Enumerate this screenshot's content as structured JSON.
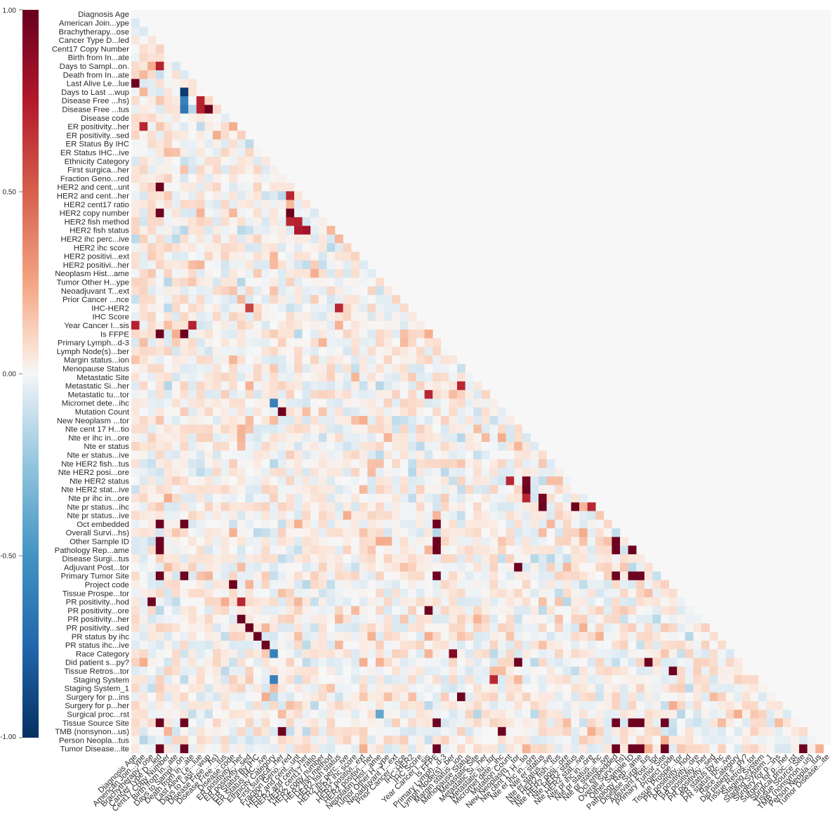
{
  "chart_data": {
    "type": "heatmap",
    "subtype": "lower-triangular correlation matrix",
    "title": "",
    "xlabel": "",
    "ylabel": "",
    "labels": [
      "Diagnosis Age",
      "American Join...ype",
      "Brachytherapy...ose",
      "Cancer Type D...led",
      "Cent17 Copy Number",
      "Birth from In...ate",
      "Days to Sampl...on.",
      "Death from In...ate",
      "Last Alive Le...lue",
      "Days to Last ...wup",
      "Disease Free ...hs)",
      "Disease Free ...tus",
      "Disease code",
      "ER positivity...her",
      "ER positivity...sed",
      "ER Status By IHC",
      "ER Status IHC...ive",
      "Ethnicity Category",
      "First surgica...her",
      "Fraction Geno...red",
      "HER2 and cent...unt",
      "HER2 and cent...her",
      "HER2 cent17 ratio",
      "HER2 copy number",
      "HER2 fish method",
      "HER2 fish status",
      "HER2 ihc perc...ive",
      "HER2 ihc score",
      "HER2 positivi...ext",
      "HER2 positivi...her",
      "Neoplasm Hist...ame",
      "Tumor Other H...ype",
      "Neoadjuvant T...ext",
      "Prior Cancer ...nce",
      "IHC-HER2",
      "IHC Score",
      "Year Cancer I...sis",
      "Is FFPE",
      "Primary Lymph...d-3",
      "Lymph Node(s)...ber",
      "Margin status...ion",
      "Menopause Status",
      "Metastatic Site",
      "Metastatic Si...her",
      "Metastatic tu...tor",
      "Micromet dete...ihc",
      "Mutation Count",
      "New Neoplasm ...tor",
      "Nte cent 17 H...tio",
      "Nte er ihc in...ore",
      "Nte er status",
      "Nte er status...ive",
      "Nte HER2 fish...tus",
      "Nte HER2 posi...ore",
      "Nte HER2 status",
      "Nte HER2 stat...ive",
      "Nte pr ihc in...ore",
      "Nte pr status...ihc",
      "Nte pr status...ive",
      "Oct embedded",
      "Overall Survi...hs)",
      "Other Sample ID",
      "Pathology Rep...ame",
      "Disease Surgi...tus",
      "Adjuvant Post...tor",
      "Primary Tumor Site",
      "Project code",
      "Tissue Prospe...tor",
      "PR positivity...hod",
      "PR positivity...ore",
      "PR positivity...her",
      "PR positivity...sed",
      "PR status by ihc",
      "PR status ihc...ive",
      "Race Category",
      "Did patient s...py?",
      "Tissue Retros...tor",
      "Staging System",
      "Staging System_1",
      "Surgery for p...ins",
      "Surgery for p...her",
      "Surgical proc...rst",
      "Tissue Source Site",
      "TMB (nonsynon...us)",
      "Person Neopla...tus",
      "Tumor Disease...ite"
    ],
    "value_range": [
      -1.0,
      1.0
    ],
    "colormap": "RdBu_r (diverging red-white-blue)",
    "mask": "upper triangle including diagonal",
    "colorbar": {
      "ticks": [
        1.0,
        0.5,
        0.0,
        -0.5,
        -1.0
      ],
      "tick_labels": [
        "1.00",
        "0.50",
        "0.00",
        "-0.50",
        "-1.00"
      ]
    },
    "strong_correlations": [
      {
        "row": 8,
        "col": 0,
        "value": 0.98
      },
      {
        "row": 36,
        "col": 0,
        "value": 0.72
      },
      {
        "row": 6,
        "col": 3,
        "value": 0.72
      },
      {
        "row": 9,
        "col": 6,
        "value": -0.95
      },
      {
        "row": 10,
        "col": 6,
        "value": -0.6
      },
      {
        "row": 11,
        "col": 6,
        "value": -0.65
      },
      {
        "row": 11,
        "col": 8,
        "value": 0.72
      },
      {
        "row": 11,
        "col": 9,
        "value": 0.98
      },
      {
        "row": 10,
        "col": 8,
        "value": 0.72
      },
      {
        "row": 13,
        "col": 1,
        "value": 0.7
      },
      {
        "row": 20,
        "col": 3,
        "value": 0.98
      },
      {
        "row": 23,
        "col": 3,
        "value": 0.98
      },
      {
        "row": 21,
        "col": 19,
        "value": 0.7
      },
      {
        "row": 23,
        "col": 19,
        "value": 0.98
      },
      {
        "row": 24,
        "col": 19,
        "value": 0.7
      },
      {
        "row": 24,
        "col": 20,
        "value": 0.72
      },
      {
        "row": 25,
        "col": 20,
        "value": 0.75
      },
      {
        "row": 25,
        "col": 21,
        "value": 0.8
      },
      {
        "row": 37,
        "col": 3,
        "value": 0.98
      },
      {
        "row": 37,
        "col": 6,
        "value": 0.98
      },
      {
        "row": 36,
        "col": 7,
        "value": 0.72
      },
      {
        "row": 34,
        "col": 14,
        "value": 0.6
      },
      {
        "row": 34,
        "col": 25,
        "value": 0.7
      },
      {
        "row": 44,
        "col": 36,
        "value": 0.7
      },
      {
        "row": 46,
        "col": 18,
        "value": 0.98
      },
      {
        "row": 45,
        "col": 17,
        "value": -0.6
      },
      {
        "row": 43,
        "col": 40,
        "value": 0.7
      },
      {
        "row": 54,
        "col": 46,
        "value": 0.7
      },
      {
        "row": 54,
        "col": 48,
        "value": 0.95
      },
      {
        "row": 55,
        "col": 48,
        "value": 0.98
      },
      {
        "row": 56,
        "col": 48,
        "value": 0.7
      },
      {
        "row": 56,
        "col": 50,
        "value": 0.95
      },
      {
        "row": 57,
        "col": 50,
        "value": 0.98
      },
      {
        "row": 57,
        "col": 54,
        "value": 0.98
      },
      {
        "row": 57,
        "col": 56,
        "value": 0.7
      },
      {
        "row": 59,
        "col": 3,
        "value": 0.98
      },
      {
        "row": 59,
        "col": 6,
        "value": 0.98
      },
      {
        "row": 59,
        "col": 37,
        "value": 0.98
      },
      {
        "row": 61,
        "col": 3,
        "value": 0.98
      },
      {
        "row": 61,
        "col": 37,
        "value": 0.98
      },
      {
        "row": 61,
        "col": 59,
        "value": 0.98
      },
      {
        "row": 62,
        "col": 3,
        "value": 0.98
      },
      {
        "row": 62,
        "col": 37,
        "value": 0.98
      },
      {
        "row": 62,
        "col": 59,
        "value": 0.98
      },
      {
        "row": 62,
        "col": 61,
        "value": 0.98
      },
      {
        "row": 64,
        "col": 47,
        "value": 0.98
      },
      {
        "row": 65,
        "col": 3,
        "value": 0.98
      },
      {
        "row": 65,
        "col": 6,
        "value": 0.98
      },
      {
        "row": 65,
        "col": 37,
        "value": 0.98
      },
      {
        "row": 65,
        "col": 59,
        "value": 0.98
      },
      {
        "row": 65,
        "col": 61,
        "value": 0.98
      },
      {
        "row": 65,
        "col": 62,
        "value": 0.98
      },
      {
        "row": 66,
        "col": 12,
        "value": 0.98
      },
      {
        "row": 68,
        "col": 2,
        "value": 0.98
      },
      {
        "row": 68,
        "col": 13,
        "value": 0.7
      },
      {
        "row": 69,
        "col": 36,
        "value": 0.98
      },
      {
        "row": 70,
        "col": 13,
        "value": 0.98
      },
      {
        "row": 71,
        "col": 14,
        "value": 0.98
      },
      {
        "row": 72,
        "col": 15,
        "value": 0.98
      },
      {
        "row": 73,
        "col": 16,
        "value": 0.98
      },
      {
        "row": 74,
        "col": 17,
        "value": -0.6
      },
      {
        "row": 74,
        "col": 39,
        "value": 0.9
      },
      {
        "row": 75,
        "col": 47,
        "value": 0.98
      },
      {
        "row": 75,
        "col": 63,
        "value": 0.98
      },
      {
        "row": 76,
        "col": 66,
        "value": 0.98
      },
      {
        "row": 77,
        "col": 17,
        "value": -0.6
      },
      {
        "row": 77,
        "col": 44,
        "value": 0.7
      },
      {
        "row": 79,
        "col": 40,
        "value": 0.98
      },
      {
        "row": 81,
        "col": 30,
        "value": -0.4
      },
      {
        "row": 82,
        "col": 3,
        "value": 0.98
      },
      {
        "row": 82,
        "col": 6,
        "value": 0.98
      },
      {
        "row": 82,
        "col": 37,
        "value": 0.98
      },
      {
        "row": 82,
        "col": 59,
        "value": 0.98
      },
      {
        "row": 82,
        "col": 61,
        "value": 0.98
      },
      {
        "row": 82,
        "col": 62,
        "value": 0.98
      },
      {
        "row": 82,
        "col": 65,
        "value": 0.98
      },
      {
        "row": 83,
        "col": 18,
        "value": 0.98
      },
      {
        "row": 83,
        "col": 45,
        "value": 0.98
      },
      {
        "row": 85,
        "col": 3,
        "value": 0.98
      },
      {
        "row": 85,
        "col": 6,
        "value": 0.98
      },
      {
        "row": 85,
        "col": 37,
        "value": 0.98
      },
      {
        "row": 85,
        "col": 59,
        "value": 0.98
      },
      {
        "row": 85,
        "col": 61,
        "value": 0.98
      },
      {
        "row": 85,
        "col": 62,
        "value": 0.98
      },
      {
        "row": 85,
        "col": 65,
        "value": 0.98
      },
      {
        "row": 85,
        "col": 82,
        "value": 0.98
      }
    ]
  }
}
